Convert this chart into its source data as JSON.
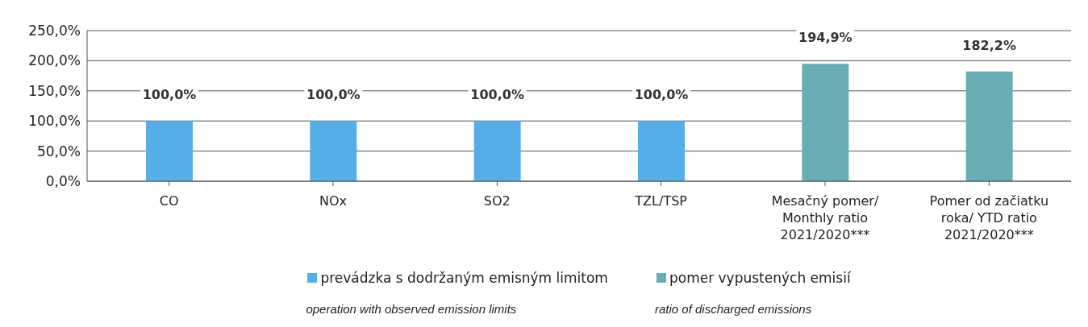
{
  "chart_data": {
    "type": "bar",
    "categories": [
      "CO",
      "NOx",
      "SO2",
      "TZL/TSP",
      "Mesačný pomer/\nMonthly ratio\n2021/2020***",
      "Pomer od začiatku\nroka/ YTD ratio\n2021/2020***"
    ],
    "series": [
      {
        "name": "prevádzka s dodržaným emisným limitom\noperation with observed emission limits",
        "color": "#56aee8",
        "values": [
          100,
          100,
          100,
          100,
          null,
          null
        ],
        "value_labels": [
          "100,0%",
          "100,0%",
          "100,0%",
          "100,0%",
          null,
          null
        ]
      },
      {
        "name": "pomer vypustených emisií\nratio of discharged emissions",
        "color": "#6aacb4",
        "values": [
          null,
          null,
          null,
          null,
          194.9,
          182.2
        ],
        "value_labels": [
          null,
          null,
          null,
          null,
          "194,9%",
          "182,2%"
        ]
      }
    ],
    "ylim": [
      0,
      250
    ],
    "yticks": [
      {
        "value": 0,
        "label": "0,0%"
      },
      {
        "value": 50,
        "label": "50,0%"
      },
      {
        "value": 100,
        "label": "100,0%"
      },
      {
        "value": 150,
        "label": "150,0%"
      },
      {
        "value": 200,
        "label": "200,0%"
      },
      {
        "value": 250,
        "label": "250,0%"
      }
    ],
    "grid": "y",
    "legend": "bottom"
  }
}
